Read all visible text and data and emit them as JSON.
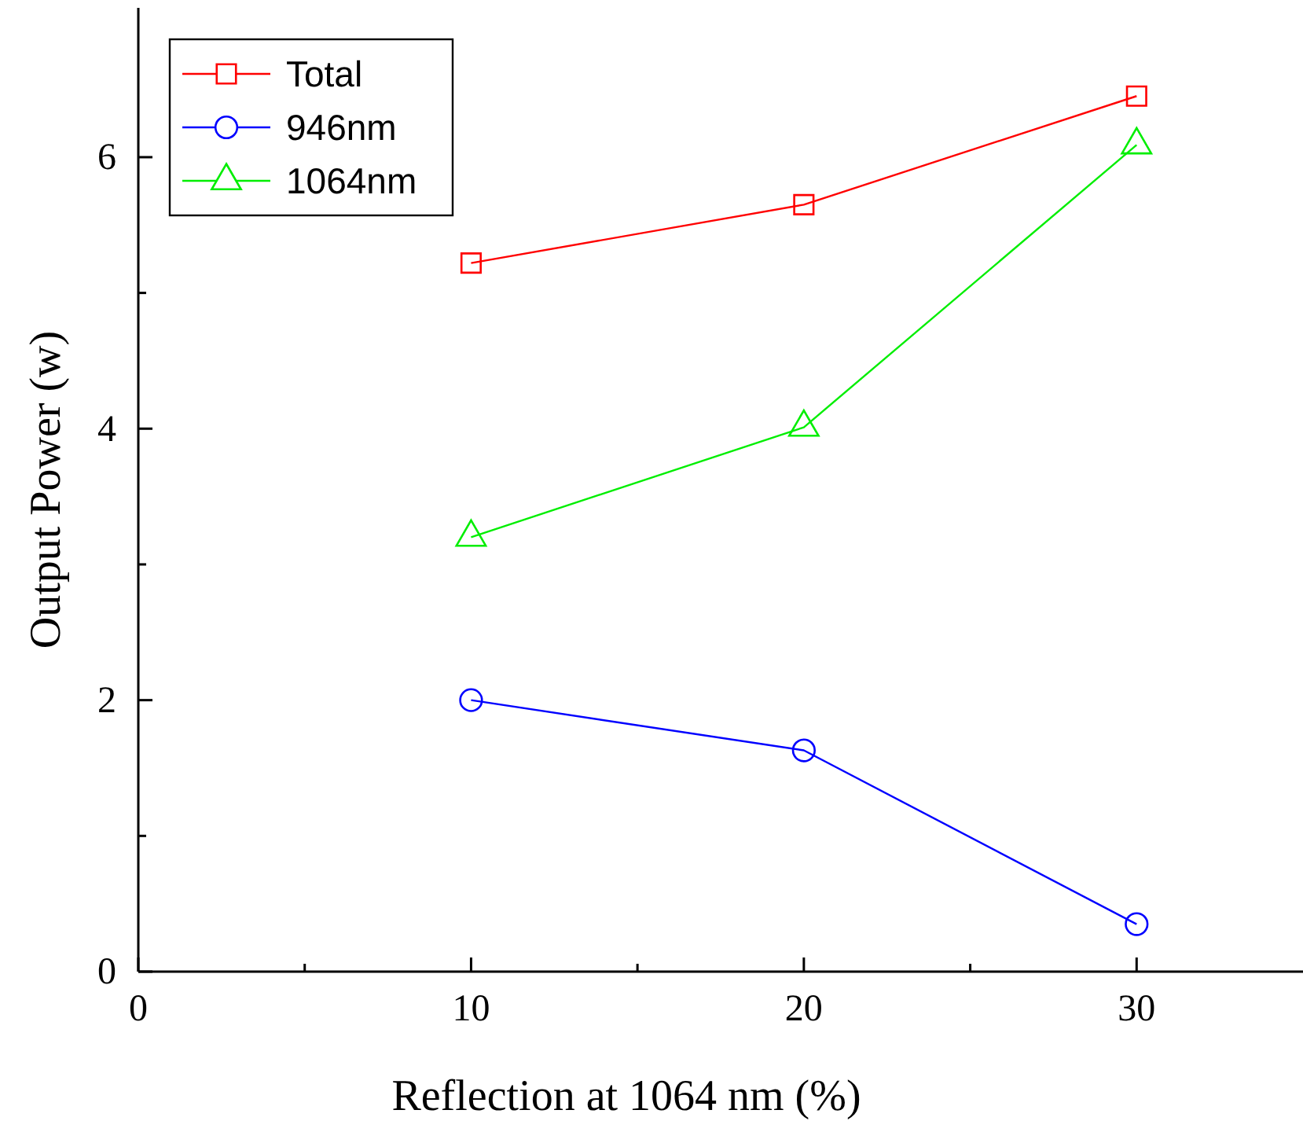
{
  "chart_data": {
    "type": "line",
    "xlabel": "Reflection at 1064 nm (%)",
    "ylabel": "Output Power (w)",
    "x": [
      10,
      20,
      30
    ],
    "xlim": [
      0,
      35
    ],
    "xticks": [
      0,
      {
        "value": 5,
        "label": null
      },
      10,
      {
        "value": 15,
        "label": null
      },
      20,
      {
        "value": 25,
        "label": null
      },
      30
    ],
    "ylim": [
      0,
      7.1
    ],
    "yticks": [
      0,
      {
        "value": 1,
        "label": null
      },
      2,
      {
        "value": 3,
        "label": null
      },
      4,
      {
        "value": 5,
        "label": null
      },
      6
    ],
    "legend": "top left",
    "grid": false,
    "series": [
      {
        "name": "Total",
        "color": "#ff0000",
        "marker": "square",
        "values": [
          5.22,
          5.65,
          6.45
        ]
      },
      {
        "name": "946nm",
        "color": "#0000ff",
        "marker": "circle",
        "values": [
          2.0,
          1.63,
          0.35
        ]
      },
      {
        "name": "1064nm",
        "color": "#00ee00",
        "marker": "triangle",
        "values": [
          3.2,
          4.01,
          6.09
        ]
      }
    ]
  }
}
